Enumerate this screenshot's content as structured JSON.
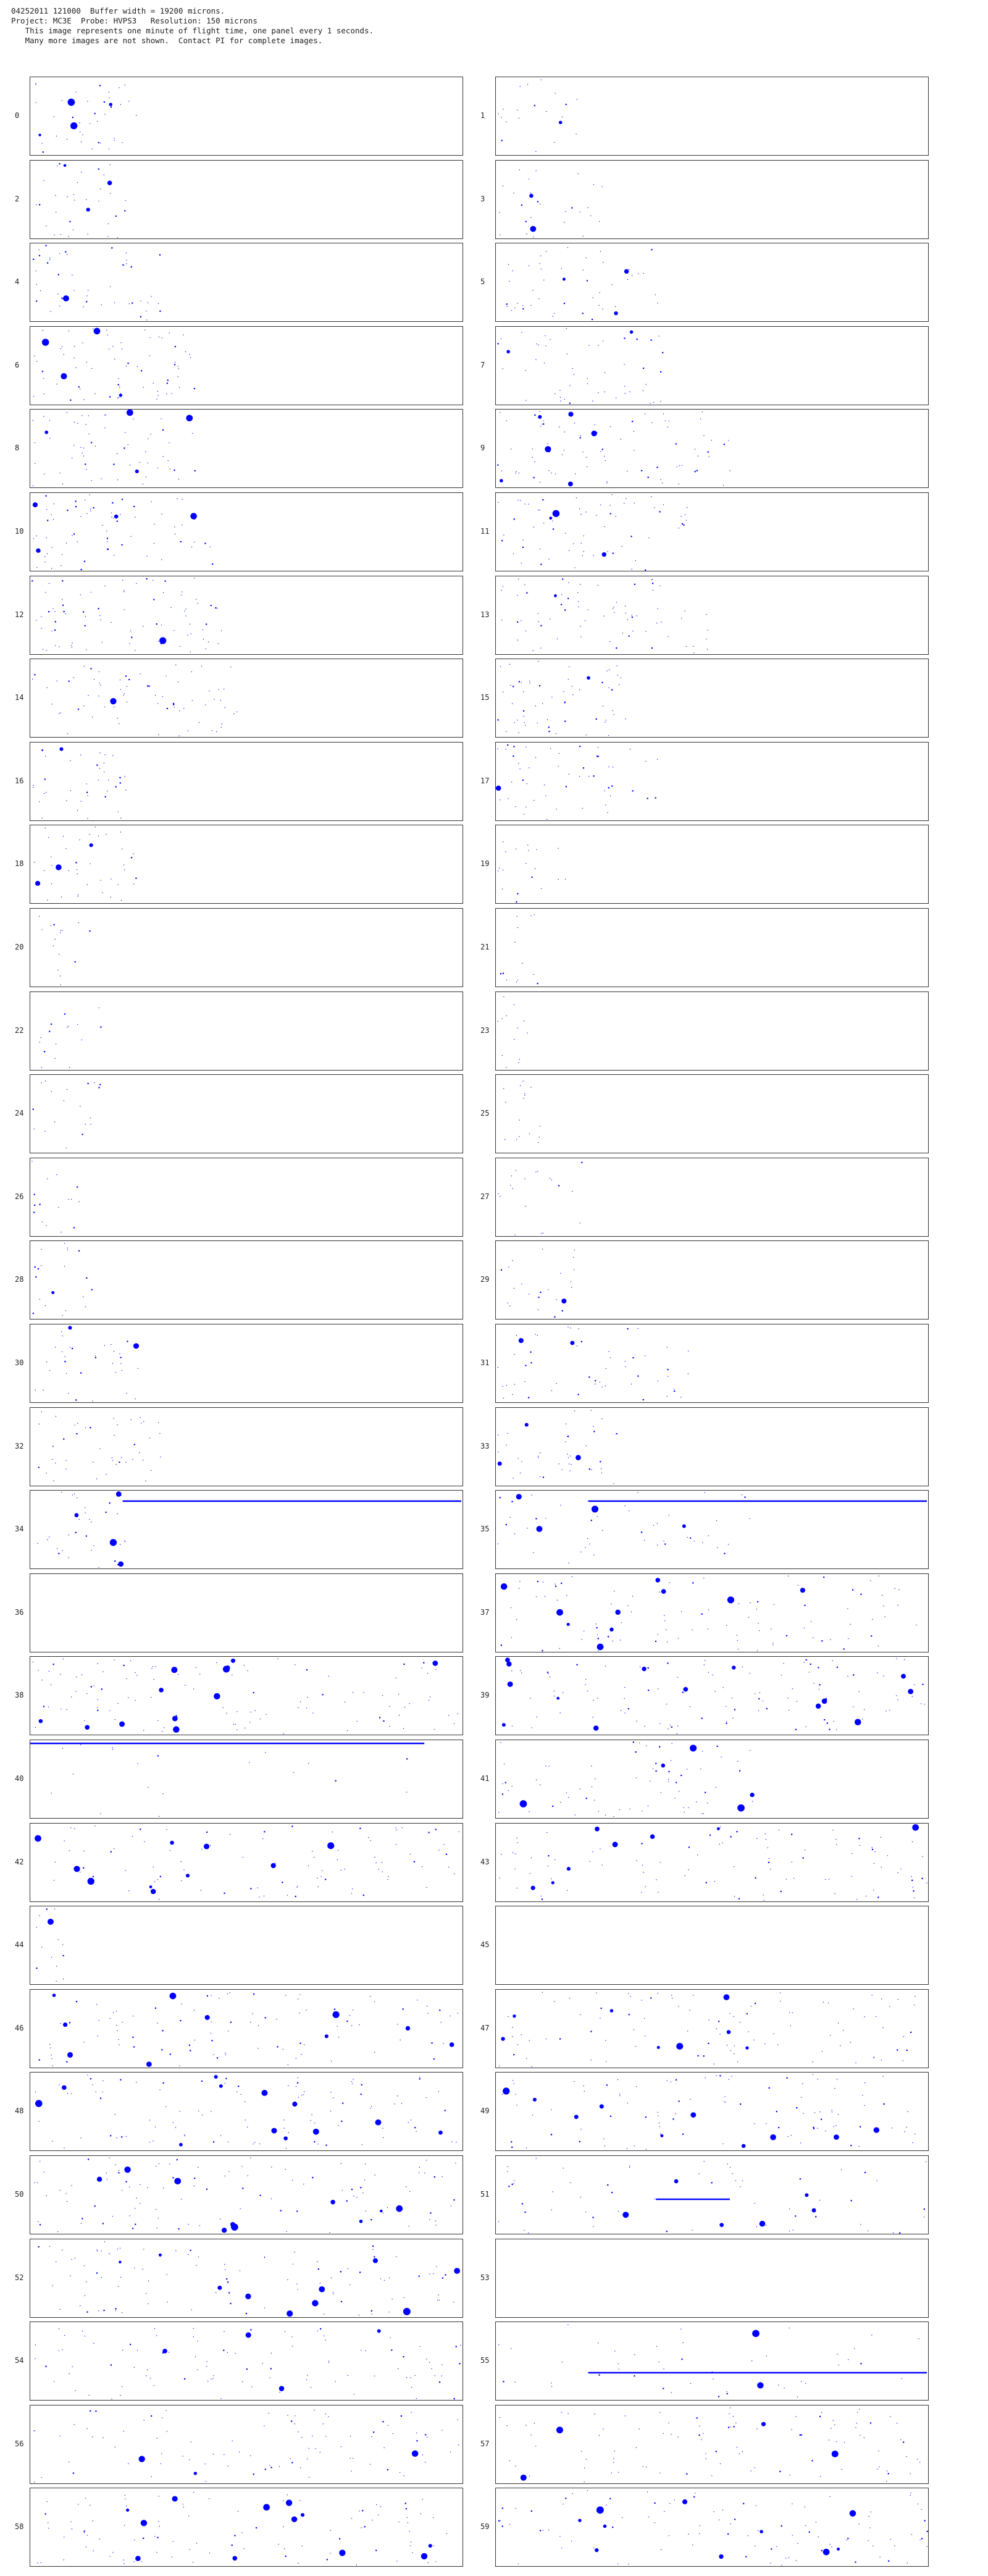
{
  "header": {
    "line1": "04252011 121000  Buffer width = 19200 microns.",
    "line2": "Project: MC3E  Probe: HVPS3   Resolution: 150 microns",
    "line3": "   This image represents one minute of flight time, one panel every 1 seconds.",
    "line4": "   Many more images are not shown.  Contact PI for complete images."
  },
  "colors": {
    "particle": "#0000ff",
    "border": "#333333",
    "background": "#ffffff"
  },
  "panels": [
    {
      "label": "0",
      "density": 0.12,
      "extent": 0.25,
      "big": 4,
      "streak": 0
    },
    {
      "label": "1",
      "density": 0.06,
      "extent": 0.22,
      "big": 1,
      "streak": 0
    },
    {
      "label": "2",
      "density": 0.1,
      "extent": 0.22,
      "big": 3,
      "streak": 0
    },
    {
      "label": "3",
      "density": 0.08,
      "extent": 0.25,
      "big": 2,
      "streak": 0
    },
    {
      "label": "4",
      "density": 0.14,
      "extent": 0.3,
      "big": 1,
      "streak": 0
    },
    {
      "label": "5",
      "density": 0.14,
      "extent": 0.38,
      "big": 3,
      "streak": 0
    },
    {
      "label": "6",
      "density": 0.22,
      "extent": 0.38,
      "big": 4,
      "streak": 0
    },
    {
      "label": "7",
      "density": 0.16,
      "extent": 0.4,
      "big": 2,
      "streak": 0
    },
    {
      "label": "8",
      "density": 0.18,
      "extent": 0.38,
      "big": 4,
      "streak": 0
    },
    {
      "label": "9",
      "density": 0.25,
      "extent": 0.55,
      "big": 6,
      "streak": 0
    },
    {
      "label": "10",
      "density": 0.22,
      "extent": 0.42,
      "big": 4,
      "streak": 0
    },
    {
      "label": "11",
      "density": 0.2,
      "extent": 0.45,
      "big": 3,
      "streak": 0
    },
    {
      "label": "12",
      "density": 0.25,
      "extent": 0.45,
      "big": 1,
      "streak": 0
    },
    {
      "label": "13",
      "density": 0.22,
      "extent": 0.5,
      "big": 1,
      "streak": 0
    },
    {
      "label": "14",
      "density": 0.22,
      "extent": 0.48,
      "big": 1,
      "streak": 0
    },
    {
      "label": "15",
      "density": 0.18,
      "extent": 0.3,
      "big": 1,
      "streak": 0
    },
    {
      "label": "16",
      "density": 0.12,
      "extent": 0.22,
      "big": 1,
      "streak": 0
    },
    {
      "label": "17",
      "density": 0.16,
      "extent": 0.38,
      "big": 1,
      "streak": 0
    },
    {
      "label": "18",
      "density": 0.12,
      "extent": 0.25,
      "big": 3,
      "streak": 0
    },
    {
      "label": "19",
      "density": 0.06,
      "extent": 0.16,
      "big": 0,
      "streak": 0
    },
    {
      "label": "20",
      "density": 0.05,
      "extent": 0.14,
      "big": 0,
      "streak": 0
    },
    {
      "label": "21",
      "density": 0.04,
      "extent": 0.1,
      "big": 0,
      "streak": 0
    },
    {
      "label": "22",
      "density": 0.05,
      "extent": 0.16,
      "big": 0,
      "streak": 0
    },
    {
      "label": "23",
      "density": 0.04,
      "extent": 0.08,
      "big": 0,
      "streak": 0
    },
    {
      "label": "24",
      "density": 0.06,
      "extent": 0.16,
      "big": 0,
      "streak": 0
    },
    {
      "label": "25",
      "density": 0.05,
      "extent": 0.12,
      "big": 0,
      "streak": 0
    },
    {
      "label": "26",
      "density": 0.05,
      "extent": 0.12,
      "big": 0,
      "streak": 0
    },
    {
      "label": "27",
      "density": 0.06,
      "extent": 0.2,
      "big": 0,
      "streak": 0
    },
    {
      "label": "28",
      "density": 0.06,
      "extent": 0.14,
      "big": 1,
      "streak": 0
    },
    {
      "label": "29",
      "density": 0.07,
      "extent": 0.18,
      "big": 1,
      "streak": 0
    },
    {
      "label": "30",
      "density": 0.1,
      "extent": 0.25,
      "big": 2,
      "streak": 0
    },
    {
      "label": "31",
      "density": 0.16,
      "extent": 0.45,
      "big": 2,
      "streak": 0
    },
    {
      "label": "32",
      "density": 0.14,
      "extent": 0.32,
      "big": 0,
      "streak": 0
    },
    {
      "label": "33",
      "density": 0.12,
      "extent": 0.3,
      "big": 3,
      "streak": 0
    },
    {
      "label": "34",
      "density": 0.1,
      "extent": 0.22,
      "big": 4,
      "streak": 1
    },
    {
      "label": "35",
      "density": 0.14,
      "extent": 0.6,
      "big": 4,
      "streak": 1
    },
    {
      "label": "36",
      "density": 0.0,
      "extent": 0.05,
      "big": 0,
      "streak": 0
    },
    {
      "label": "37",
      "density": 0.3,
      "extent": 1.0,
      "big": 10,
      "streak": 0
    },
    {
      "label": "38",
      "density": 0.34,
      "extent": 1.0,
      "big": 12,
      "streak": 0
    },
    {
      "label": "39",
      "density": 0.34,
      "extent": 1.0,
      "big": 14,
      "streak": 0
    },
    {
      "label": "40",
      "density": 0.06,
      "extent": 0.9,
      "big": 0,
      "streak": 1
    },
    {
      "label": "41",
      "density": 0.22,
      "extent": 0.6,
      "big": 5,
      "streak": 0
    },
    {
      "label": "42",
      "density": 0.28,
      "extent": 1.0,
      "big": 10,
      "streak": 0
    },
    {
      "label": "43",
      "density": 0.3,
      "extent": 1.0,
      "big": 8,
      "streak": 0
    },
    {
      "label": "44",
      "density": 0.04,
      "extent": 0.08,
      "big": 1,
      "streak": 0
    },
    {
      "label": "45",
      "density": 0.0,
      "extent": 0.05,
      "big": 0,
      "streak": 0
    },
    {
      "label": "46",
      "density": 0.3,
      "extent": 1.0,
      "big": 10,
      "streak": 0
    },
    {
      "label": "47",
      "density": 0.3,
      "extent": 1.0,
      "big": 8,
      "streak": 0
    },
    {
      "label": "48",
      "density": 0.32,
      "extent": 1.0,
      "big": 12,
      "streak": 0
    },
    {
      "label": "49",
      "density": 0.3,
      "extent": 1.0,
      "big": 10,
      "streak": 0
    },
    {
      "label": "50",
      "density": 0.32,
      "extent": 1.0,
      "big": 10,
      "streak": 0
    },
    {
      "label": "51",
      "density": 0.18,
      "extent": 1.0,
      "big": 6,
      "streak": 1
    },
    {
      "label": "52",
      "density": 0.3,
      "extent": 1.0,
      "big": 10,
      "streak": 0
    },
    {
      "label": "53",
      "density": 0.0,
      "extent": 0.05,
      "big": 0,
      "streak": 0
    },
    {
      "label": "54",
      "density": 0.3,
      "extent": 1.0,
      "big": 4,
      "streak": 0
    },
    {
      "label": "55",
      "density": 0.14,
      "extent": 1.0,
      "big": 2,
      "streak": 1
    },
    {
      "label": "56",
      "density": 0.28,
      "extent": 1.0,
      "big": 3,
      "streak": 0
    },
    {
      "label": "57",
      "density": 0.3,
      "extent": 1.0,
      "big": 4,
      "streak": 0
    },
    {
      "label": "58",
      "density": 0.3,
      "extent": 1.0,
      "big": 12,
      "streak": 0
    },
    {
      "label": "59",
      "density": 0.3,
      "extent": 1.0,
      "big": 10,
      "streak": 0
    }
  ]
}
